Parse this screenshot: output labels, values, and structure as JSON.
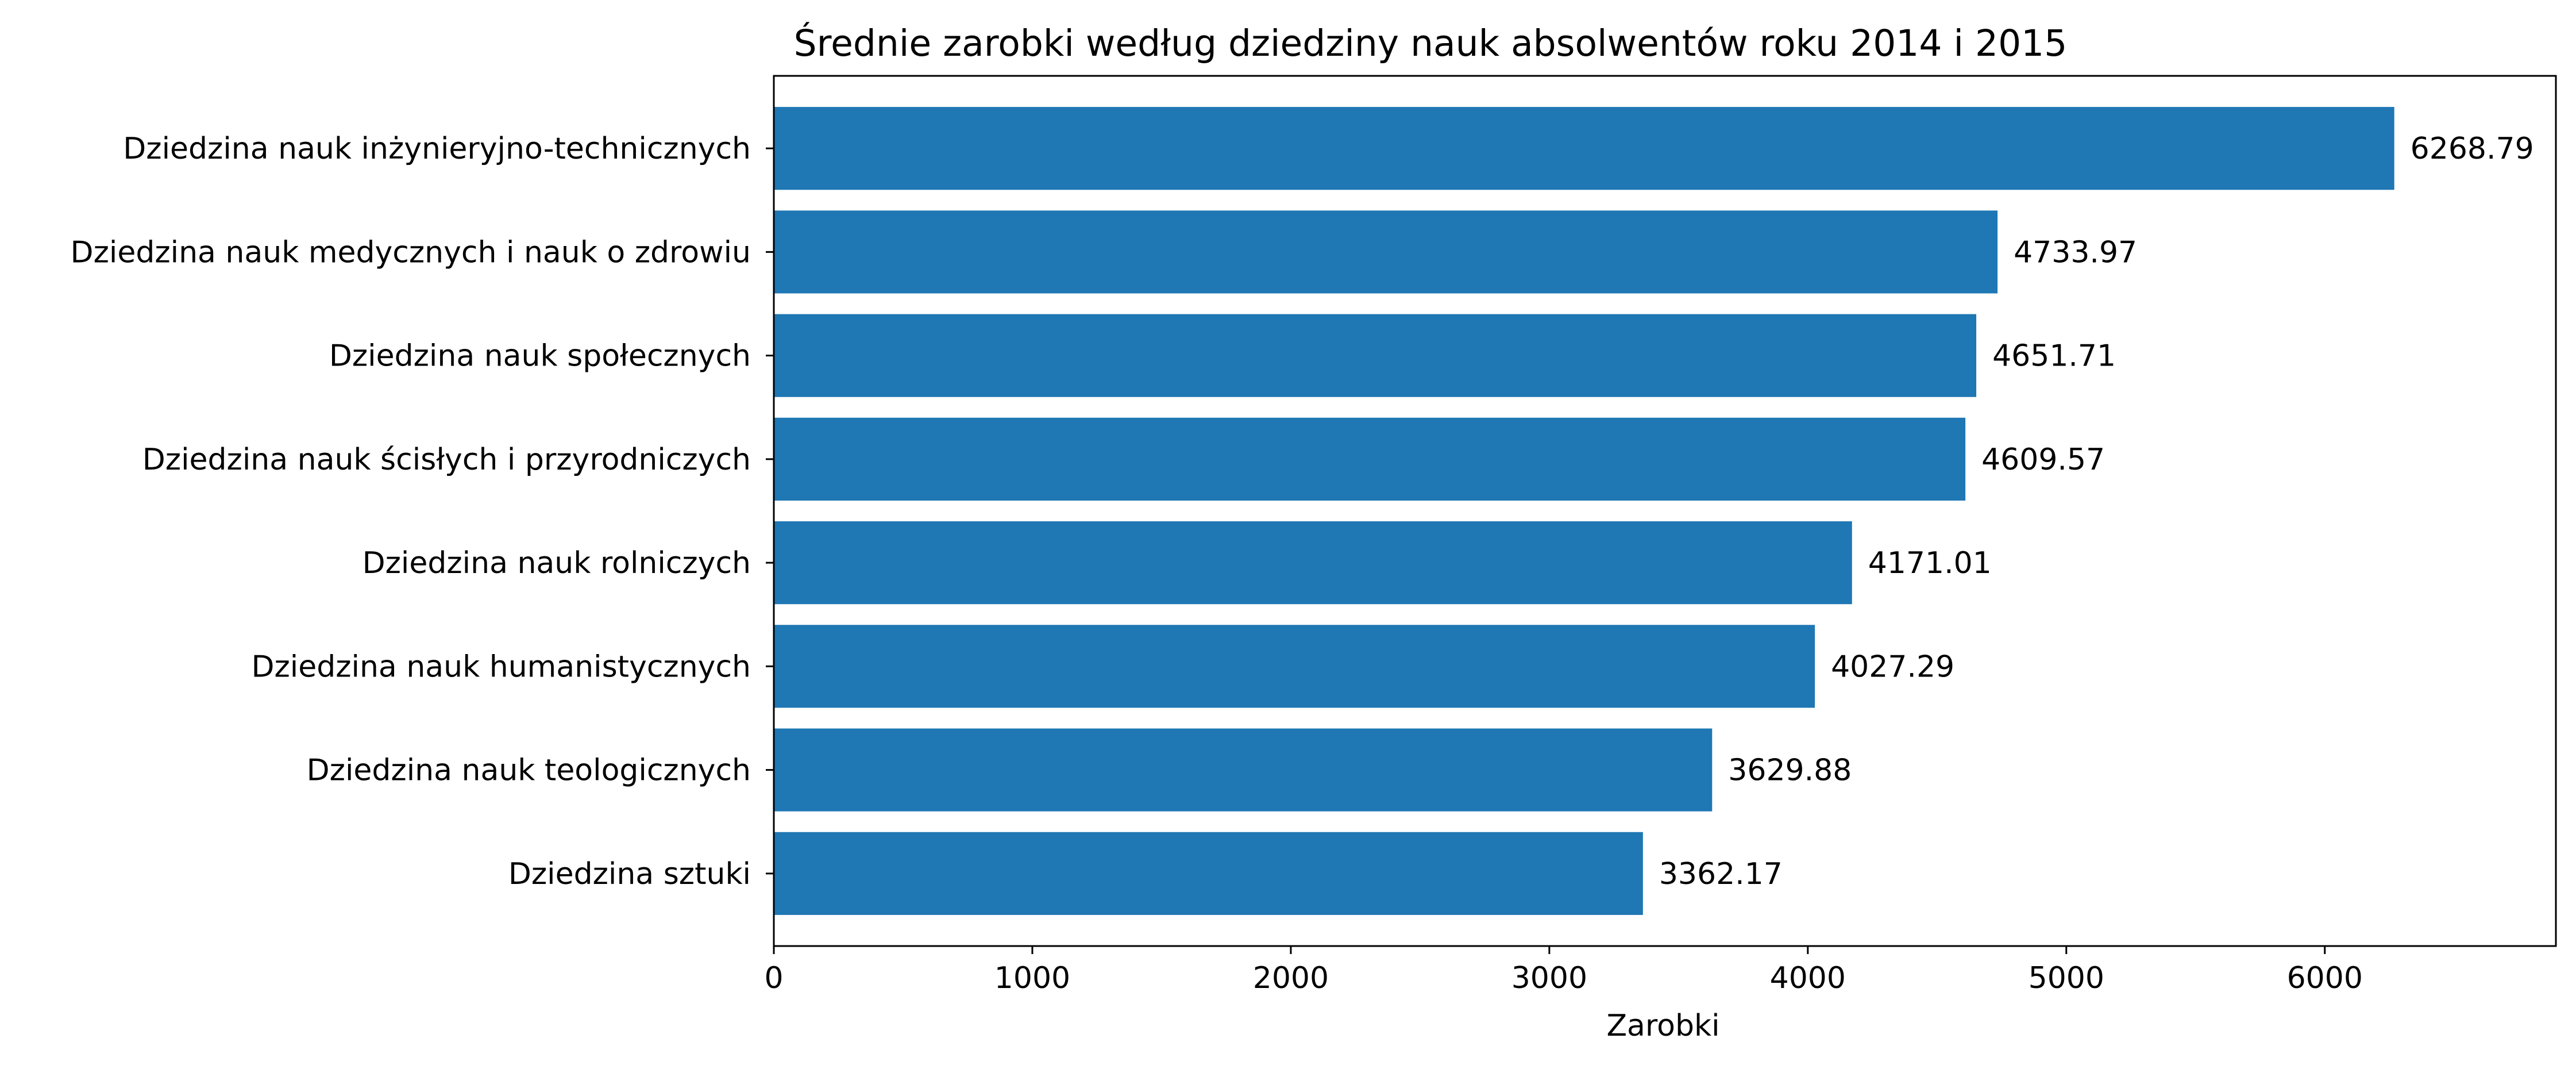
{
  "chart_data": {
    "type": "bar",
    "orientation": "horizontal",
    "title": "Średnie zarobki według dziedziny nauk absolwentów roku 2014 i 2015",
    "xlabel": "Zarobki",
    "ylabel": "",
    "categories": [
      "Dziedzina nauk inżynieryjno-technicznych",
      "Dziedzina nauk medycznych i nauk o zdrowiu",
      "Dziedzina nauk społecznych",
      "Dziedzina nauk ścisłych i przyrodniczych",
      "Dziedzina nauk rolniczych",
      "Dziedzina nauk humanistycznych",
      "Dziedzina nauk teologicznych",
      "Dziedzina sztuki"
    ],
    "values": [
      6268.79,
      4733.97,
      4651.71,
      4609.57,
      4171.01,
      4027.29,
      3629.88,
      3362.17
    ],
    "value_labels": [
      "6268.79",
      "4733.97",
      "4651.71",
      "4609.57",
      "4171.01",
      "4027.29",
      "3629.88",
      "3362.17"
    ],
    "xlim": [
      0,
      6894
    ],
    "xticks": [
      0,
      1000,
      2000,
      3000,
      4000,
      5000,
      6000
    ],
    "xtick_labels": [
      "0",
      "1000",
      "2000",
      "3000",
      "4000",
      "5000",
      "6000"
    ],
    "grid": false,
    "legend": "none",
    "bar_color": "#1f77b4"
  }
}
